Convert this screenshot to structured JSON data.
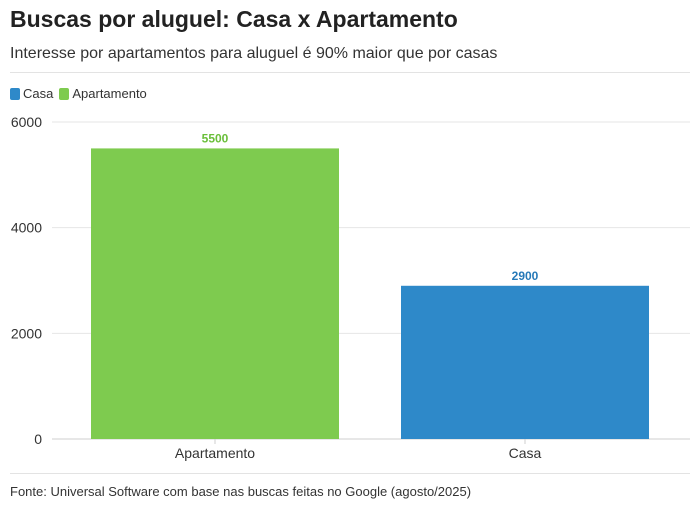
{
  "header": {
    "title": "Buscas por aluguel: Casa x Apartamento",
    "subtitle": "Interesse por apartamentos para aluguel é 90% maior que por casas"
  },
  "footer": {
    "source": "Fonte: Universal Software com base nas buscas feitas no Google (agosto/2025)"
  },
  "chart_data": {
    "type": "bar",
    "title": "Buscas por aluguel: Casa x Apartamento",
    "xlabel": "",
    "ylabel": "",
    "categories": [
      "Apartamento",
      "Casa"
    ],
    "values": [
      5500,
      2900
    ],
    "value_labels": [
      "5500",
      "2900"
    ],
    "colors": [
      "#7ecb4f",
      "#2e89c9"
    ],
    "label_colors": [
      "#6abf3a",
      "#2679b8"
    ],
    "legend": [
      {
        "name": "Casa",
        "color": "#2e89c9"
      },
      {
        "name": "Apartamento",
        "color": "#7ecb4f"
      }
    ],
    "legend_position": "top-left",
    "ylim": [
      0,
      6000
    ],
    "yticks": [
      0,
      2000,
      4000,
      6000
    ],
    "ytick_labels": [
      "0",
      "2000",
      "4000",
      "6000"
    ],
    "grid": true
  }
}
